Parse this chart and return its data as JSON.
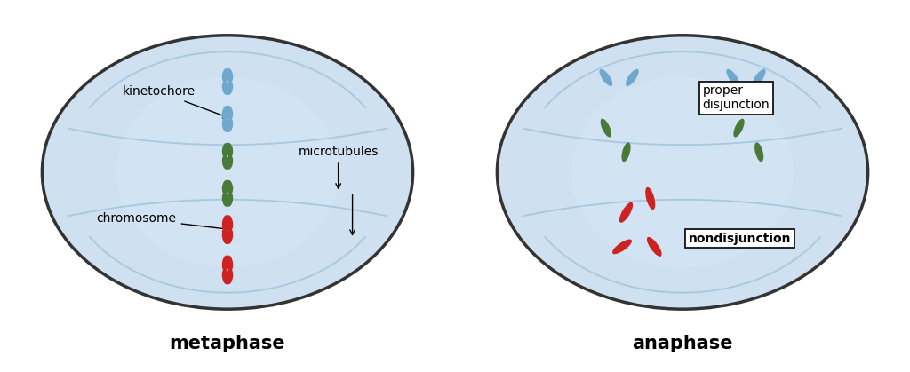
{
  "bg_color": "#ffffff",
  "cell_fill": "#cfe0f0",
  "cell_fill2": "#ddeaf8",
  "cell_edge": "#333333",
  "cell_line_color": "#a8c8e0",
  "blue_chromatid": "#6fa8cc",
  "green_chromatid": "#4a7a3a",
  "red_chromatid": "#cc2222",
  "label_metaphase": "metaphase",
  "label_anaphase": "anaphase",
  "label_kinetochore": "kinetochore",
  "label_chromosome": "chromosome",
  "label_microtubules": "microtubules",
  "label_proper": "proper\ndisjunction",
  "label_nondisj": "nondisjunction",
  "title_fontsize": 15,
  "label_fontsize": 10
}
